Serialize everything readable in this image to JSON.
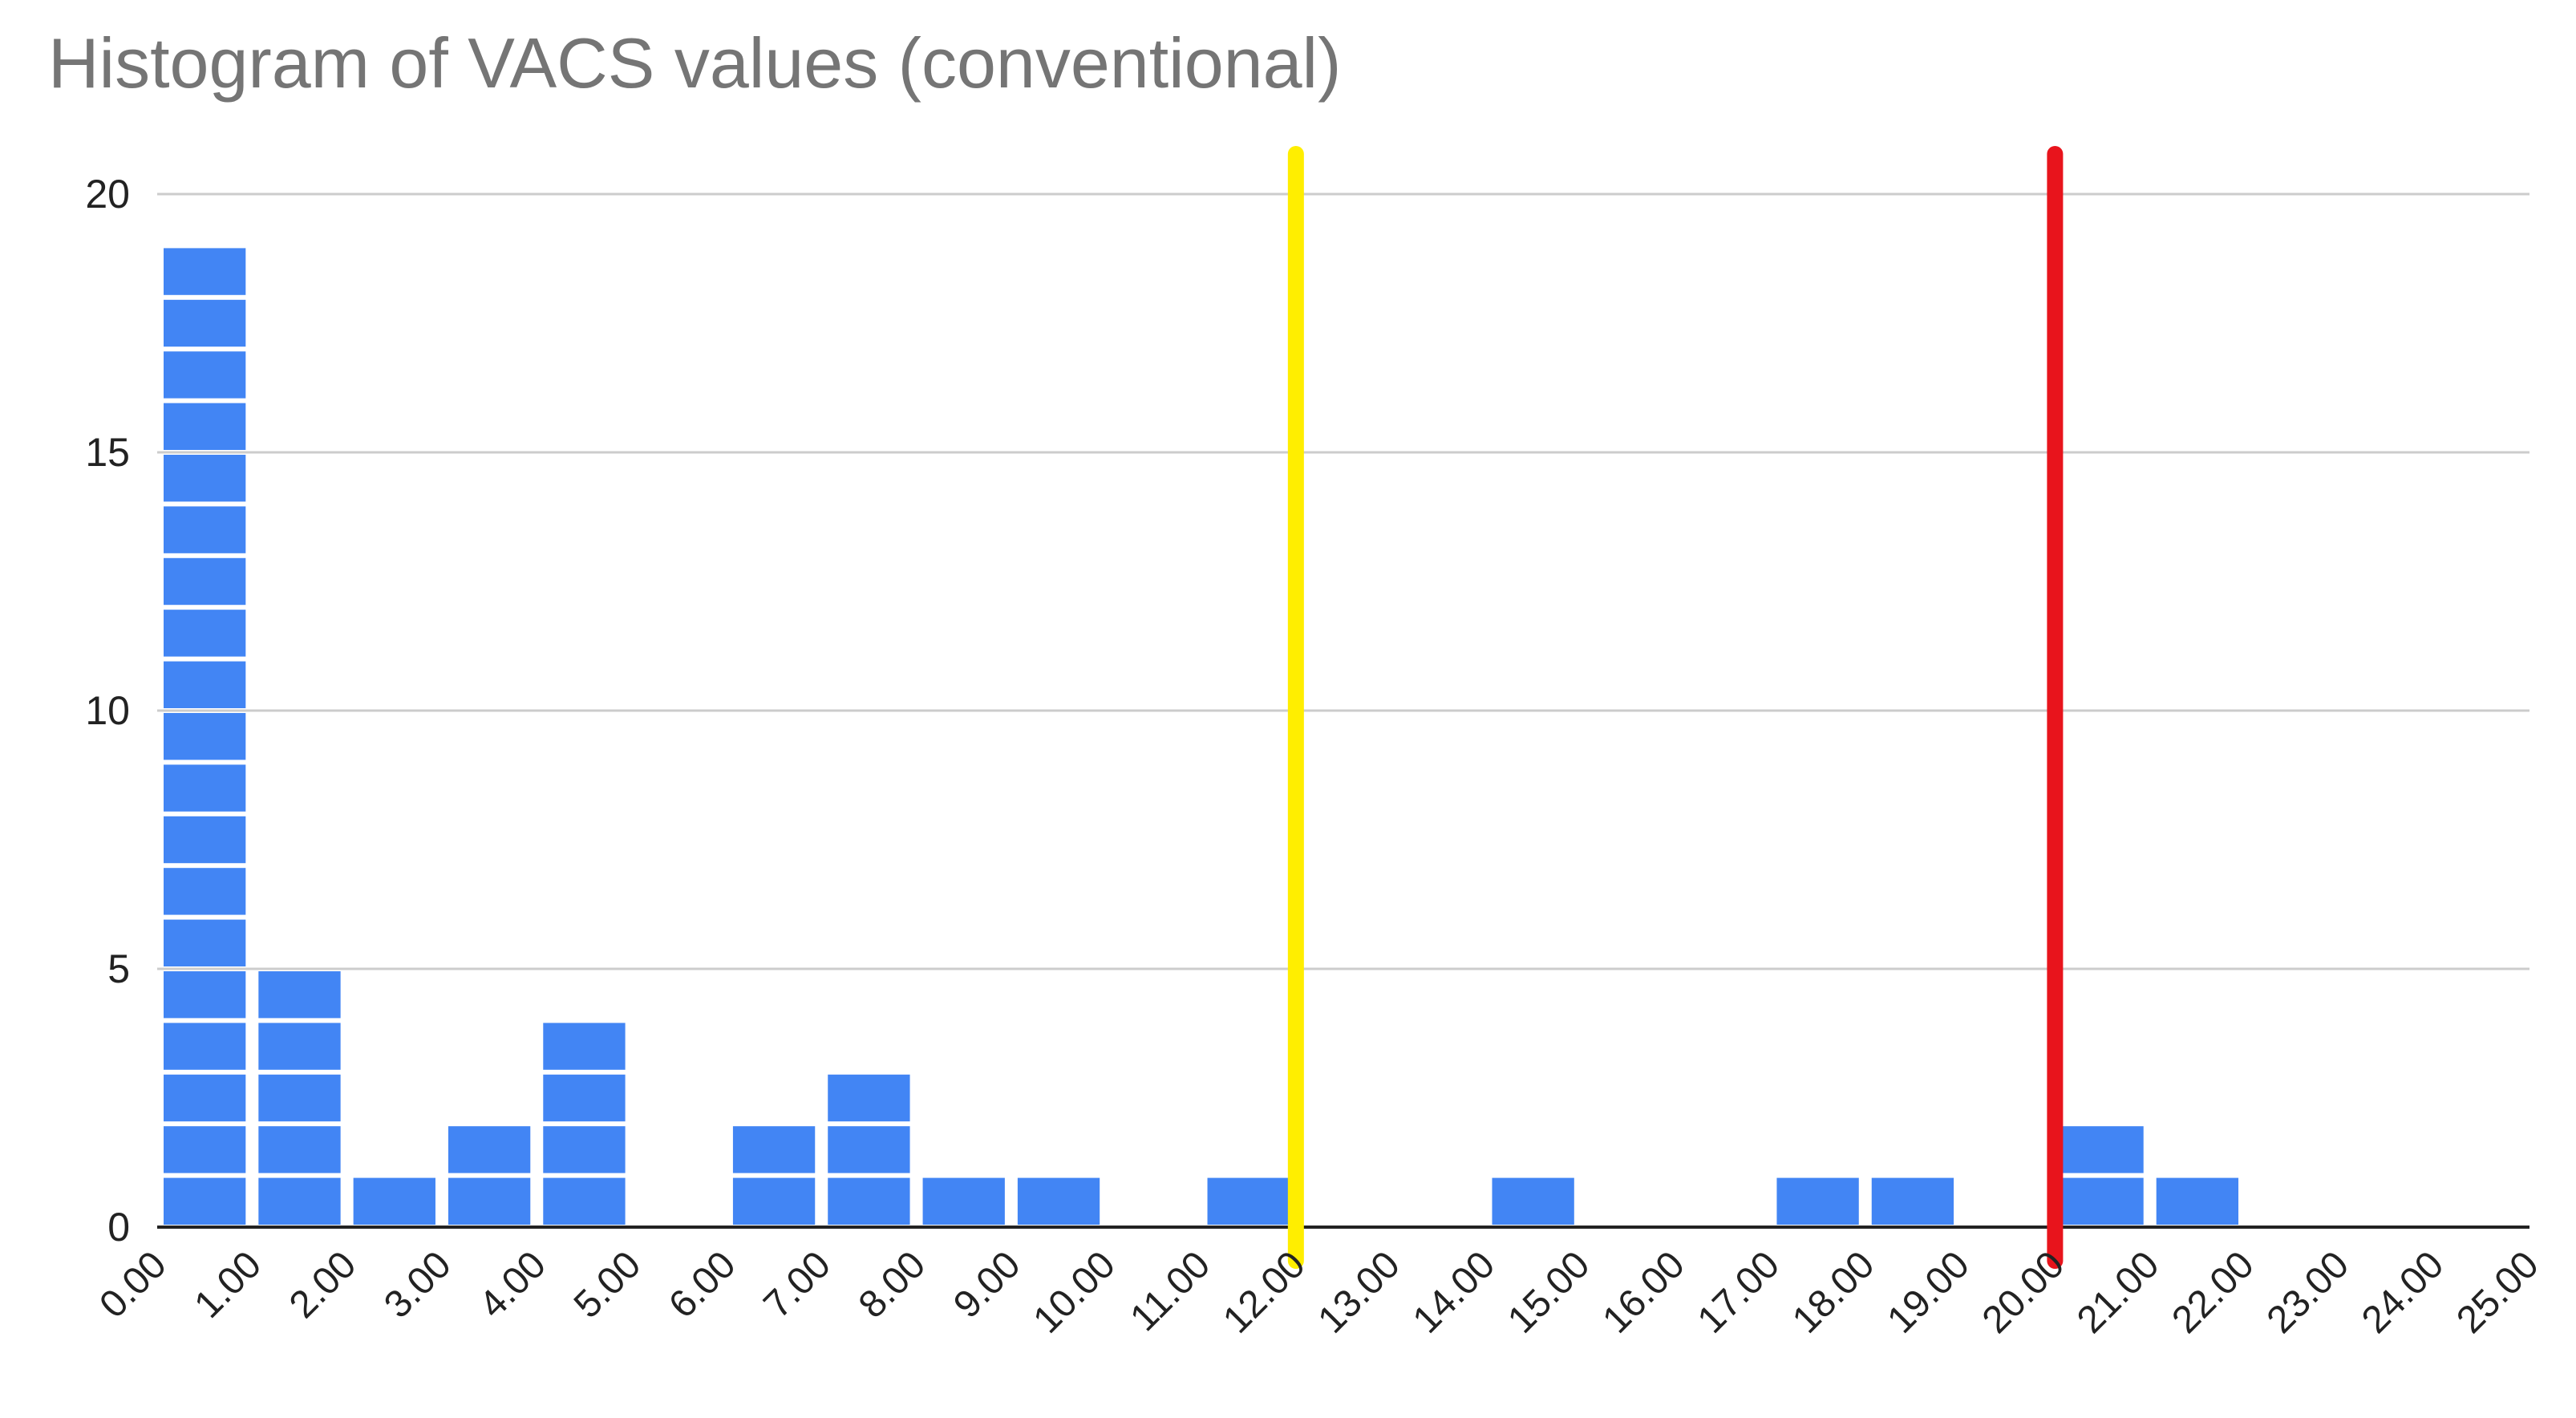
{
  "chart_data": {
    "type": "bar",
    "title": "Histogram of VACS values (conventional)",
    "xlabel": "",
    "ylabel": "",
    "x_range": [
      0,
      25
    ],
    "ylim": [
      0,
      20
    ],
    "y_ticks": [
      0,
      5,
      10,
      15,
      20
    ],
    "x_ticks": [
      "0.00",
      "1.00",
      "2.00",
      "3.00",
      "4.00",
      "5.00",
      "6.00",
      "7.00",
      "8.00",
      "9.00",
      "10.00",
      "11.00",
      "12.00",
      "13.00",
      "14.00",
      "15.00",
      "16.00",
      "17.00",
      "18.00",
      "19.00",
      "20.00",
      "21.00",
      "22.00",
      "23.00",
      "24.00",
      "25.00"
    ],
    "bins": [
      {
        "start": 0,
        "end": 1,
        "count": 19
      },
      {
        "start": 1,
        "end": 2,
        "count": 5
      },
      {
        "start": 2,
        "end": 3,
        "count": 1
      },
      {
        "start": 3,
        "end": 4,
        "count": 2
      },
      {
        "start": 4,
        "end": 5,
        "count": 4
      },
      {
        "start": 6,
        "end": 7,
        "count": 2
      },
      {
        "start": 7,
        "end": 8,
        "count": 3
      },
      {
        "start": 8,
        "end": 9,
        "count": 1
      },
      {
        "start": 9,
        "end": 10,
        "count": 1
      },
      {
        "start": 11,
        "end": 12,
        "count": 1
      },
      {
        "start": 14,
        "end": 15,
        "count": 1
      },
      {
        "start": 17,
        "end": 18,
        "count": 1
      },
      {
        "start": 18,
        "end": 19,
        "count": 1
      },
      {
        "start": 20,
        "end": 21,
        "count": 2
      },
      {
        "start": 21,
        "end": 22,
        "count": 1
      }
    ],
    "reference_lines": [
      {
        "x": 12,
        "color": "#ffee00"
      },
      {
        "x": 20,
        "color": "#e8141c"
      }
    ],
    "bar_color": "#4285f4",
    "grid": true,
    "legend": "none"
  }
}
